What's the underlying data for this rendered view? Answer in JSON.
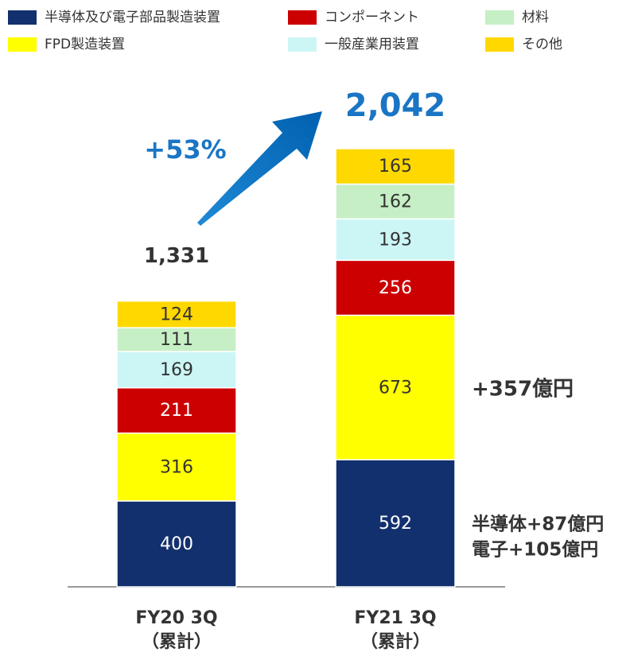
{
  "chart_data": {
    "type": "stacked_bar",
    "categories": [
      "FY20 3Q",
      "FY21 3Q"
    ],
    "category_notes": [
      "（累計）",
      "（累計）"
    ],
    "series": [
      {
        "name": "半導体及び電子部品製造装置",
        "color": "#13306e",
        "values": [
          400,
          592
        ]
      },
      {
        "name": "FPD製造装置",
        "color": "#ffff00",
        "values": [
          316,
          673
        ]
      },
      {
        "name": "コンポーネント",
        "color": "#cc0000",
        "values": [
          211,
          256
        ]
      },
      {
        "name": "一般産業用装置",
        "color": "#ccf6f6",
        "values": [
          169,
          193
        ]
      },
      {
        "name": "材料",
        "color": "#c6efc6",
        "values": [
          111,
          162
        ]
      },
      {
        "name": "その他",
        "color": "#ffd800",
        "values": [
          124,
          165
        ]
      }
    ],
    "totals": [
      1331,
      2042
    ],
    "total_labels": [
      "1,331",
      "2,042"
    ],
    "annotations": {
      "growth": "+53%",
      "fpd_increase": "+357億円",
      "semi_increase": "半導体+87億円",
      "elec_increase": "電子+105億円"
    }
  }
}
